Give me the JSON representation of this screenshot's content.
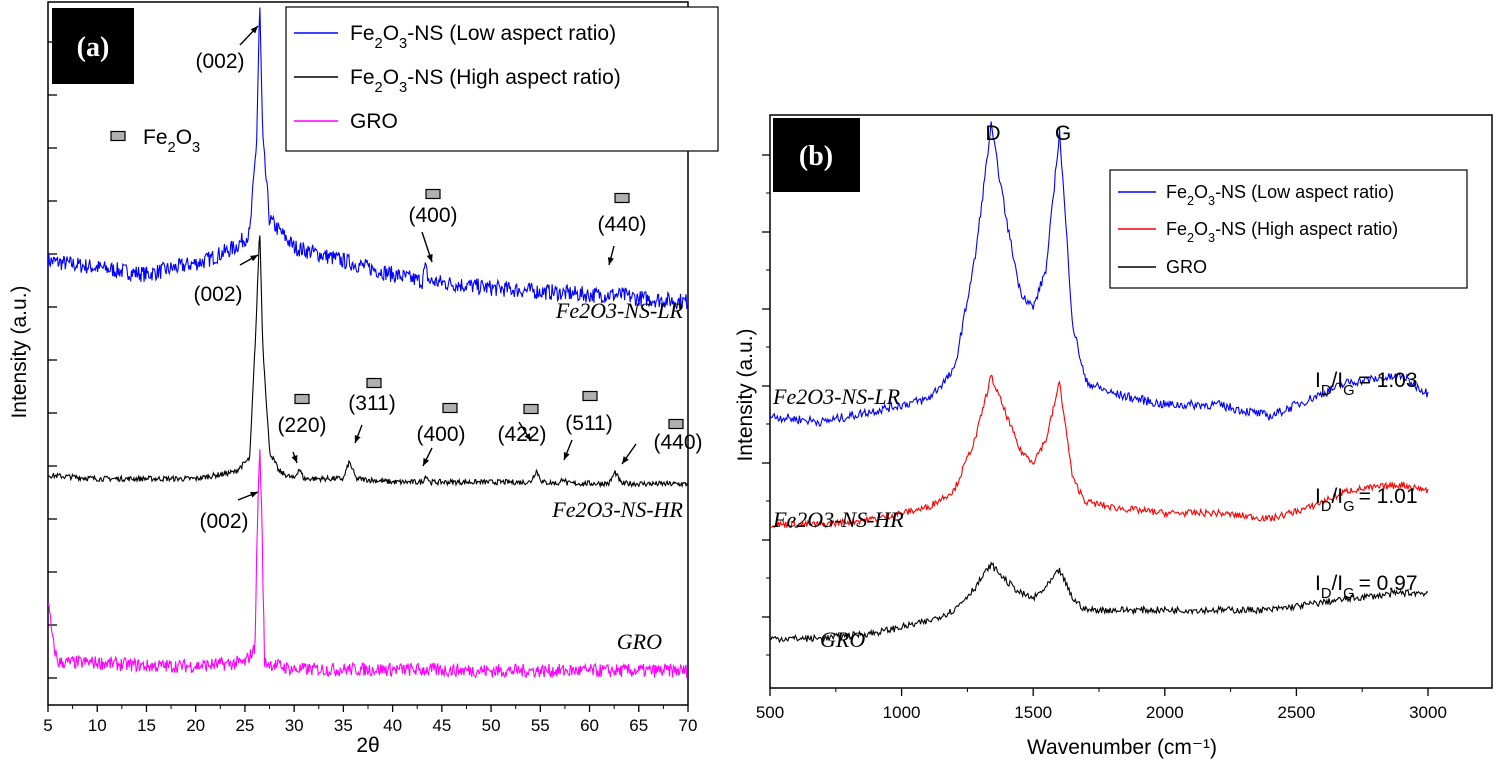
{
  "chart_data": [
    {
      "type": "line",
      "panel": "(a)",
      "xlabel": "2θ",
      "ylabel": "Intensity (a.u.)",
      "xlim": [
        5,
        70
      ],
      "xticks": [
        "5",
        "10",
        "15",
        "20",
        "25",
        "30",
        "35",
        "40",
        "45",
        "50",
        "55",
        "60",
        "65",
        "70"
      ],
      "legend_position": "top-right",
      "marker_legend": {
        "base": "Fe",
        "sub1": "2",
        "mid": "O",
        "sub2": "3"
      },
      "series": [
        {
          "name": {
            "base": "Fe",
            "sub1": "2",
            "mid": "O",
            "sub2": "3",
            "rest": "-NS (Low aspect ratio)"
          },
          "color": "#0000ff",
          "label": "Fe2O3-NS-LR",
          "x": [
            5,
            10,
            15,
            18,
            21,
            24,
            25.5,
            26.2,
            26.5,
            26.8,
            27.5,
            30,
            35,
            40,
            43,
            43.3,
            43.7,
            50,
            55,
            60,
            63,
            65,
            70
          ],
          "y": [
            0.62,
            0.61,
            0.6,
            0.61,
            0.62,
            0.64,
            0.66,
            0.8,
            1.0,
            0.8,
            0.68,
            0.64,
            0.62,
            0.6,
            0.59,
            0.61,
            0.59,
            0.58,
            0.575,
            0.57,
            0.57,
            0.565,
            0.56
          ]
        },
        {
          "name": {
            "base": "Fe",
            "sub1": "2",
            "mid": "O",
            "sub2": "3",
            "rest": "-NS (High aspect ratio)"
          },
          "color": "#000000",
          "label": "Fe2O3-NS-HR",
          "x": [
            5,
            10,
            15,
            20,
            24,
            25.5,
            26.2,
            26.5,
            26.8,
            27.5,
            28.5,
            30,
            30.5,
            31,
            35,
            35.6,
            36.3,
            40,
            43,
            43.4,
            43.8,
            50,
            54,
            54.6,
            55.2,
            57,
            57.3,
            57.7,
            62,
            62.6,
            63.2,
            70
          ],
          "y": [
            0.305,
            0.3,
            0.3,
            0.3,
            0.31,
            0.33,
            0.55,
            0.67,
            0.5,
            0.34,
            0.31,
            0.3,
            0.315,
            0.3,
            0.3,
            0.325,
            0.3,
            0.295,
            0.295,
            0.305,
            0.295,
            0.295,
            0.295,
            0.312,
            0.295,
            0.293,
            0.302,
            0.293,
            0.293,
            0.31,
            0.293,
            0.292
          ]
        },
        {
          "name": {
            "base": "GRO",
            "sub1": "",
            "mid": "",
            "sub2": "",
            "rest": ""
          },
          "color": "#ff00ff",
          "label": "GRO",
          "x": [
            5,
            5.5,
            6,
            10,
            15,
            20,
            25,
            26,
            26.3,
            26.5,
            26.7,
            27,
            30,
            40,
            50,
            60,
            70
          ],
          "y": [
            0.12,
            0.06,
            0.03,
            0.03,
            0.025,
            0.025,
            0.03,
            0.05,
            0.25,
            0.35,
            0.25,
            0.03,
            0.02,
            0.02,
            0.018,
            0.018,
            0.018
          ]
        }
      ],
      "annotations": [
        {
          "text": "(002)",
          "x": 26.5,
          "series": "LR",
          "arrow": true
        },
        {
          "text": "(400)",
          "x": 43.3,
          "series": "LR",
          "marker": true,
          "arrow": true
        },
        {
          "text": "(440)",
          "x": 63,
          "series": "LR",
          "marker": true,
          "arrow": true
        },
        {
          "text": "(002)",
          "x": 26.5,
          "series": "HR",
          "arrow": true
        },
        {
          "text": "(220)",
          "x": 30.3,
          "series": "HR",
          "marker": true,
          "arrow": true
        },
        {
          "text": "(311)",
          "x": 35.6,
          "series": "HR",
          "marker": true,
          "arrow": true
        },
        {
          "text": "(400)",
          "x": 43.4,
          "series": "HR",
          "marker": true,
          "arrow": true
        },
        {
          "text": "(422)",
          "x": 54.6,
          "series": "HR",
          "marker": true,
          "arrow": true
        },
        {
          "text": "(511)",
          "x": 57.3,
          "series": "HR",
          "marker": true,
          "arrow": true
        },
        {
          "text": "(440)",
          "x": 62.6,
          "series": "HR",
          "marker": true,
          "arrow": true
        },
        {
          "text": "(002)",
          "x": 26.5,
          "series": "GRO",
          "arrow": true
        }
      ]
    },
    {
      "type": "line",
      "panel": "(b)",
      "xlabel": "Wavenumber (cm⁻¹)",
      "ylabel": "Intensity (a.u.)",
      "xlim": [
        500,
        3250
      ],
      "xticks": [
        "500",
        "1000",
        "1500",
        "2000",
        "2500",
        "3000"
      ],
      "legend_position": "top-right",
      "peak_labels": [
        "D",
        "G"
      ],
      "series": [
        {
          "name": {
            "base": "Fe",
            "sub1": "2",
            "mid": "O",
            "sub2": "3",
            "rest": "-NS (Low aspect ratio)"
          },
          "color": "#0000ff",
          "label": "Fe2O3-NS-LR",
          "ratio": "= 1.03",
          "x": [
            500,
            700,
            900,
            1100,
            1200,
            1280,
            1340,
            1400,
            1450,
            1500,
            1550,
            1600,
            1650,
            1700,
            1800,
            2000,
            2200,
            2400,
            2550,
            2700,
            2900,
            3000
          ],
          "y": [
            0.44,
            0.43,
            0.45,
            0.47,
            0.52,
            0.72,
            0.95,
            0.78,
            0.66,
            0.63,
            0.7,
            0.94,
            0.6,
            0.5,
            0.48,
            0.46,
            0.46,
            0.44,
            0.47,
            0.5,
            0.51,
            0.48
          ]
        },
        {
          "name": {
            "base": "Fe",
            "sub1": "2",
            "mid": "O",
            "sub2": "3",
            "rest": "-NS (High aspect ratio)"
          },
          "color": "#ff0000",
          "label": "Fe2O3-NS-HR",
          "ratio": "= 1.01",
          "x": [
            500,
            700,
            900,
            1100,
            1200,
            1280,
            1340,
            1400,
            1450,
            1500,
            1550,
            1600,
            1650,
            1700,
            1800,
            2000,
            2200,
            2400,
            2550,
            2700,
            2900,
            3000
          ],
          "y": [
            0.25,
            0.25,
            0.26,
            0.28,
            0.31,
            0.4,
            0.51,
            0.44,
            0.38,
            0.36,
            0.4,
            0.5,
            0.33,
            0.29,
            0.28,
            0.27,
            0.27,
            0.26,
            0.28,
            0.31,
            0.32,
            0.31
          ]
        },
        {
          "name": {
            "base": "GRO",
            "sub1": "",
            "mid": "",
            "sub2": "",
            "rest": ""
          },
          "color": "#000000",
          "label": "GRO",
          "ratio": "= 0.97",
          "x": [
            500,
            700,
            900,
            1100,
            1200,
            1280,
            1340,
            1400,
            1450,
            1500,
            1550,
            1600,
            1650,
            1700,
            1800,
            2000,
            2200,
            2400,
            2550,
            2700,
            2900,
            3000
          ],
          "y": [
            0.05,
            0.05,
            0.06,
            0.08,
            0.1,
            0.14,
            0.18,
            0.15,
            0.13,
            0.12,
            0.14,
            0.17,
            0.12,
            0.1,
            0.1,
            0.1,
            0.1,
            0.1,
            0.11,
            0.12,
            0.13,
            0.13
          ]
        }
      ]
    }
  ]
}
